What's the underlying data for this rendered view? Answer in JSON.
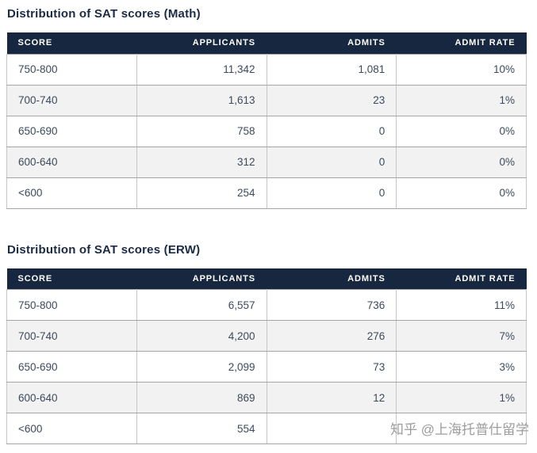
{
  "chart_data": [
    {
      "type": "table",
      "title": "Distribution of SAT scores (Math)",
      "columns": [
        "SCORE",
        "APPLICANTS",
        "ADMITS",
        "ADMIT RATE"
      ],
      "rows": [
        {
          "score": "750-800",
          "applicants": "11,342",
          "admits": "1,081",
          "admit_rate": "10%"
        },
        {
          "score": "700-740",
          "applicants": "1,613",
          "admits": "23",
          "admit_rate": "1%"
        },
        {
          "score": "650-690",
          "applicants": "758",
          "admits": "0",
          "admit_rate": "0%"
        },
        {
          "score": "600-640",
          "applicants": "312",
          "admits": "0",
          "admit_rate": "0%"
        },
        {
          "score": "<600",
          "applicants": "254",
          "admits": "0",
          "admit_rate": "0%"
        }
      ]
    },
    {
      "type": "table",
      "title": "Distribution of SAT scores (ERW)",
      "columns": [
        "SCORE",
        "APPLICANTS",
        "ADMITS",
        "ADMIT RATE"
      ],
      "rows": [
        {
          "score": "750-800",
          "applicants": "6,557",
          "admits": "736",
          "admit_rate": "11%"
        },
        {
          "score": "700-740",
          "applicants": "4,200",
          "admits": "276",
          "admit_rate": "7%"
        },
        {
          "score": "650-690",
          "applicants": "2,099",
          "admits": "73",
          "admit_rate": "3%"
        },
        {
          "score": "600-640",
          "applicants": "869",
          "admits": "12",
          "admit_rate": "1%"
        },
        {
          "score": "<600",
          "applicants": "554",
          "admits": "",
          "admit_rate": ""
        }
      ]
    }
  ],
  "watermark": {
    "text": "知乎 @上海托普仕留学"
  },
  "colors": {
    "header_bg": "#17273f",
    "title_text": "#1c2b45",
    "body_text": "#3d4a5c",
    "alt_row_bg": "#f2f2f2",
    "border": "#b5b5b5",
    "watermark_text": "#9c9c9c"
  }
}
